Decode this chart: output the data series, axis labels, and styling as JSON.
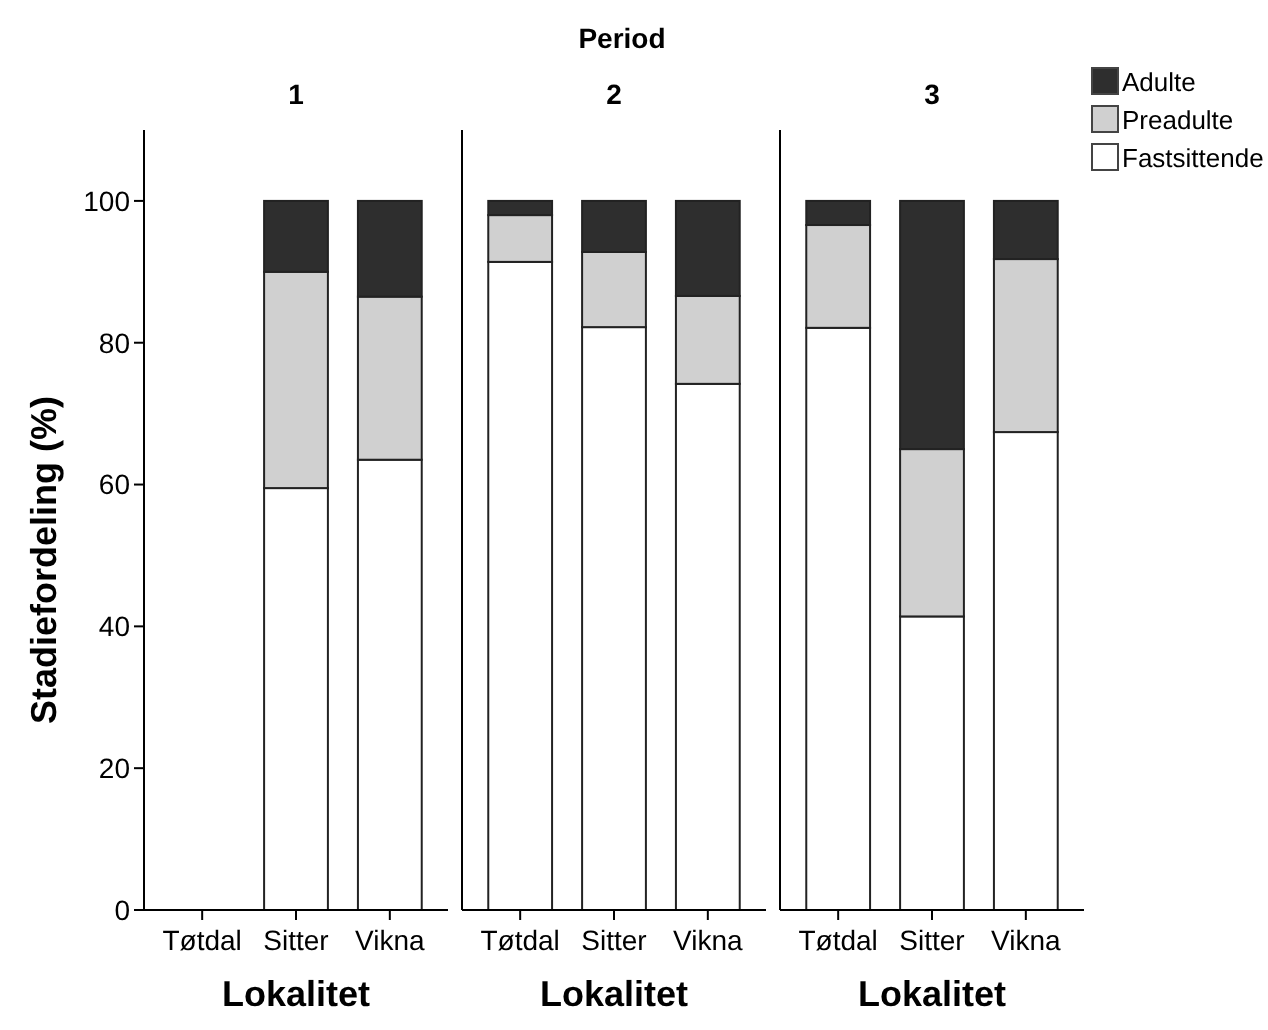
{
  "chart_data": [
    {
      "type": "bar",
      "title": "1",
      "annotations": [
        "Period"
      ],
      "xlabel": "Lokalitet",
      "ylabel": "Stadiefordeling (%)",
      "categories": [
        "Tøtdal",
        "Sitter",
        "Vikna"
      ],
      "stacked": true,
      "ylim": [
        0,
        110
      ],
      "yticks": [
        0,
        20,
        40,
        60,
        80,
        100
      ],
      "grid": false,
      "legend": false,
      "series": [
        {
          "color": "#ffffff",
          "values": [
            0,
            59.5,
            63.5
          ]
        },
        {
          "color": "#d0d0d0",
          "values": [
            0,
            30.5,
            23
          ]
        },
        {
          "color": "#2e2e2e",
          "values": [
            0,
            10,
            13.5
          ]
        }
      ]
    },
    {
      "type": "bar",
      "title": "2",
      "xlabel": "Lokalitet",
      "categories": [
        "Tøtdal",
        "Sitter",
        "Vikna"
      ],
      "stacked": true,
      "ylim": [
        0,
        110
      ],
      "tick_labels": "x",
      "grid": false,
      "legend": false,
      "series": [
        {
          "color": "#ffffff",
          "values": [
            91.4,
            82.2,
            74.2
          ]
        },
        {
          "color": "#d0d0d0",
          "values": [
            6.6,
            10.6,
            12.4
          ]
        },
        {
          "color": "#2e2e2e",
          "values": [
            2,
            7.2,
            13.4
          ]
        }
      ]
    },
    {
      "type": "bar",
      "title": "3",
      "xlabel": "Lokalitet",
      "categories": [
        "Tøtdal",
        "Sitter",
        "Vikna"
      ],
      "stacked": true,
      "ylim": [
        0,
        110
      ],
      "tick_labels": "x",
      "grid": false,
      "legend": "top right",
      "series": [
        {
          "name": "Fastsittende",
          "color": "#ffffff",
          "values": [
            82.1,
            41.4,
            67.4
          ]
        },
        {
          "name": "Preadulte",
          "color": "#d0d0d0",
          "values": [
            14.5,
            23.6,
            24.4
          ]
        },
        {
          "name": "Adulte",
          "color": "#2e2e2e",
          "values": [
            3.4,
            35,
            8.2
          ]
        }
      ]
    }
  ]
}
